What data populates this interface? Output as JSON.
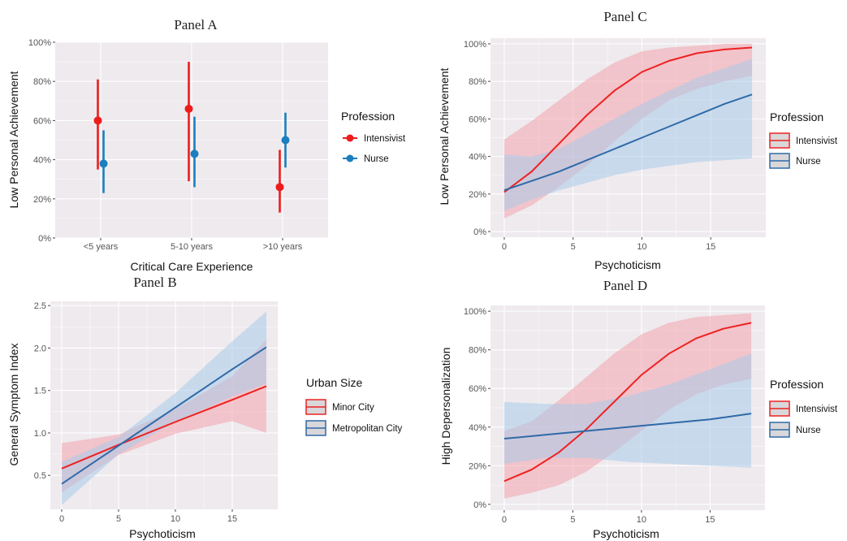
{
  "chart_data": [
    {
      "id": "A",
      "type": "scatter",
      "title": "Panel A",
      "xlabel": "Critical Care Experience",
      "ylabel": "Low Personal Achievement",
      "categories": [
        "<5 years",
        "5-10 years",
        ">10 years"
      ],
      "ylim": [
        0,
        1
      ],
      "yticks": [
        0,
        0.2,
        0.4,
        0.6,
        0.8,
        1.0
      ],
      "ytick_labels": [
        "0%",
        "20%",
        "40%",
        "60%",
        "80%",
        "100%"
      ],
      "grid": true,
      "legend": {
        "title": "Profession",
        "position": "right",
        "style": "point"
      },
      "series": [
        {
          "name": "Intensivist",
          "color": "#ee1c1c",
          "values": [
            0.6,
            0.66,
            0.26
          ],
          "lower": [
            0.35,
            0.29,
            0.13
          ],
          "upper": [
            0.81,
            0.9,
            0.45
          ]
        },
        {
          "name": "Nurse",
          "color": "#1b7fbd",
          "values": [
            0.38,
            0.43,
            0.5
          ],
          "lower": [
            0.23,
            0.26,
            0.36
          ],
          "upper": [
            0.55,
            0.62,
            0.64
          ]
        }
      ]
    },
    {
      "id": "B",
      "type": "line",
      "title": "Panel B",
      "xlabel": "Psychoticism",
      "ylabel": "General Symptom Index",
      "xlim": [
        -1,
        19
      ],
      "ylim": [
        0.1,
        2.55
      ],
      "xticks": [
        0,
        5,
        10,
        15
      ],
      "xtick_labels": [
        "0",
        "5",
        "10",
        "15"
      ],
      "yticks": [
        0.5,
        1.0,
        1.5,
        2.0,
        2.5
      ],
      "ytick_labels": [
        "0.5",
        "1.0",
        "1.5",
        "2.0",
        "2.5"
      ],
      "grid": true,
      "legend": {
        "title": "Urban Size",
        "position": "right",
        "style": "band"
      },
      "series": [
        {
          "name": "Minor City",
          "color": "#ee2222",
          "fill": "#f4a3ad",
          "x": [
            0,
            5,
            10,
            15,
            18
          ],
          "y": [
            0.58,
            0.86,
            1.13,
            1.39,
            1.55
          ],
          "lower": [
            0.3,
            0.74,
            0.99,
            1.14,
            1.0
          ],
          "upper": [
            0.88,
            0.98,
            1.28,
            1.67,
            2.1
          ]
        },
        {
          "name": "Metropolitan City",
          "color": "#2f6aa8",
          "fill": "#a9cbea",
          "x": [
            0,
            5,
            10,
            15,
            18
          ],
          "y": [
            0.4,
            0.85,
            1.3,
            1.75,
            2.01
          ],
          "lower": [
            0.15,
            0.75,
            1.13,
            1.43,
            1.58
          ],
          "upper": [
            0.66,
            0.95,
            1.47,
            2.08,
            2.43
          ]
        }
      ]
    },
    {
      "id": "C",
      "type": "line",
      "title": "Panel C",
      "xlabel": "Psychoticism",
      "ylabel": "Low Personal Achievement",
      "xlim": [
        -1,
        19
      ],
      "ylim": [
        -0.03,
        1.03
      ],
      "xticks": [
        0,
        5,
        10,
        15
      ],
      "xtick_labels": [
        "0",
        "5",
        "10",
        "15"
      ],
      "yticks": [
        0,
        0.2,
        0.4,
        0.6,
        0.8,
        1.0
      ],
      "ytick_labels": [
        "0%",
        "20%",
        "40%",
        "60%",
        "80%",
        "100%"
      ],
      "grid": true,
      "legend": {
        "title": "Profession",
        "position": "right",
        "style": "band"
      },
      "series": [
        {
          "name": "Intensivist",
          "color": "#ee2222",
          "fill": "#f4a3ad",
          "x": [
            0,
            2,
            4,
            6,
            8,
            10,
            12,
            14,
            16,
            18
          ],
          "y": [
            0.21,
            0.32,
            0.47,
            0.62,
            0.75,
            0.85,
            0.91,
            0.95,
            0.97,
            0.98
          ],
          "lower": [
            0.07,
            0.14,
            0.24,
            0.35,
            0.48,
            0.6,
            0.7,
            0.76,
            0.8,
            0.83
          ],
          "upper": [
            0.49,
            0.59,
            0.7,
            0.81,
            0.9,
            0.96,
            0.98,
            0.99,
            1.0,
            1.0
          ]
        },
        {
          "name": "Nurse",
          "color": "#2f6aa8",
          "fill": "#a9cbea",
          "x": [
            0,
            2,
            4,
            6,
            8,
            10,
            12,
            14,
            16,
            18
          ],
          "y": [
            0.22,
            0.27,
            0.32,
            0.38,
            0.44,
            0.5,
            0.56,
            0.62,
            0.68,
            0.73
          ],
          "lower": [
            0.11,
            0.17,
            0.22,
            0.26,
            0.3,
            0.33,
            0.35,
            0.37,
            0.38,
            0.39
          ],
          "upper": [
            0.41,
            0.4,
            0.44,
            0.52,
            0.6,
            0.68,
            0.75,
            0.82,
            0.87,
            0.92
          ]
        }
      ]
    },
    {
      "id": "D",
      "type": "line",
      "title": "Panel D",
      "xlabel": "Psychoticism",
      "ylabel": "High Depersonalization",
      "xlim": [
        -1,
        19
      ],
      "ylim": [
        -0.03,
        1.03
      ],
      "xticks": [
        0,
        5,
        10,
        15
      ],
      "xtick_labels": [
        "0",
        "5",
        "10",
        "15"
      ],
      "yticks": [
        0,
        0.2,
        0.4,
        0.6,
        0.8,
        1.0
      ],
      "ytick_labels": [
        "0%",
        "20%",
        "40%",
        "60%",
        "80%",
        "100%"
      ],
      "grid": true,
      "legend": {
        "title": "Profession",
        "position": "right",
        "style": "band"
      },
      "series": [
        {
          "name": "Intensivist",
          "color": "#ee2222",
          "fill": "#f4a3ad",
          "x": [
            0,
            2,
            4,
            6,
            8,
            10,
            12,
            14,
            16,
            18
          ],
          "y": [
            0.12,
            0.18,
            0.27,
            0.39,
            0.53,
            0.67,
            0.78,
            0.86,
            0.91,
            0.94
          ],
          "lower": [
            0.03,
            0.06,
            0.1,
            0.17,
            0.27,
            0.38,
            0.49,
            0.57,
            0.62,
            0.65
          ],
          "upper": [
            0.38,
            0.43,
            0.54,
            0.66,
            0.78,
            0.88,
            0.94,
            0.97,
            0.98,
            0.99
          ]
        },
        {
          "name": "Nurse",
          "color": "#2f6aa8",
          "fill": "#a9cbea",
          "x": [
            0,
            3,
            6,
            9,
            12,
            15,
            18
          ],
          "y": [
            0.34,
            0.36,
            0.38,
            0.4,
            0.42,
            0.44,
            0.47
          ],
          "lower": [
            0.21,
            0.24,
            0.24,
            0.22,
            0.21,
            0.2,
            0.19
          ],
          "upper": [
            0.53,
            0.52,
            0.52,
            0.56,
            0.62,
            0.7,
            0.78
          ]
        }
      ]
    }
  ]
}
